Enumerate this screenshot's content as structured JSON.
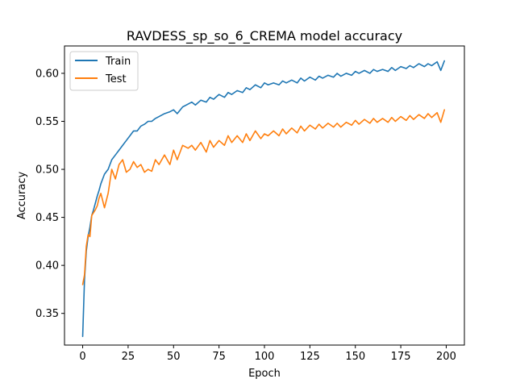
{
  "chart_data": {
    "type": "line",
    "title": "RAVDESS_sp_so_6_CREMA model accuracy",
    "xlabel": "Epoch",
    "ylabel": "Accuracy",
    "xlim": [
      -10,
      210
    ],
    "ylim": [
      0.317,
      0.6285
    ],
    "xticks": [
      0,
      25,
      50,
      75,
      100,
      125,
      150,
      175,
      200
    ],
    "yticks": [
      0.35,
      0.4,
      0.45,
      0.5,
      0.55,
      0.6
    ],
    "ytick_labels": [
      "0.35",
      "0.40",
      "0.45",
      "0.50",
      "0.55",
      "0.60"
    ],
    "grid": false,
    "legend": "top-left",
    "series": [
      {
        "name": "Train",
        "color": "#1f77b4",
        "x": [
          0,
          1,
          2,
          3,
          4,
          5,
          6,
          7,
          8,
          9,
          10,
          12,
          14,
          16,
          18,
          20,
          22,
          24,
          26,
          28,
          30,
          32,
          34,
          36,
          38,
          40,
          42,
          45,
          48,
          50,
          52,
          55,
          58,
          60,
          62,
          65,
          68,
          70,
          72,
          75,
          78,
          80,
          82,
          85,
          88,
          90,
          92,
          95,
          98,
          100,
          102,
          105,
          108,
          110,
          112,
          115,
          118,
          120,
          122,
          125,
          128,
          130,
          132,
          135,
          138,
          140,
          142,
          145,
          148,
          150,
          152,
          155,
          158,
          160,
          162,
          165,
          168,
          170,
          172,
          175,
          178,
          180,
          182,
          185,
          188,
          190,
          192,
          195,
          197,
          199
        ],
        "values": [
          0.326,
          0.385,
          0.415,
          0.43,
          0.44,
          0.452,
          0.458,
          0.465,
          0.472,
          0.478,
          0.485,
          0.495,
          0.5,
          0.51,
          0.515,
          0.52,
          0.525,
          0.53,
          0.535,
          0.54,
          0.54,
          0.545,
          0.547,
          0.55,
          0.55,
          0.553,
          0.555,
          0.558,
          0.56,
          0.562,
          0.558,
          0.565,
          0.568,
          0.57,
          0.567,
          0.572,
          0.57,
          0.575,
          0.573,
          0.578,
          0.575,
          0.58,
          0.578,
          0.582,
          0.58,
          0.585,
          0.583,
          0.588,
          0.585,
          0.59,
          0.588,
          0.59,
          0.588,
          0.592,
          0.59,
          0.593,
          0.59,
          0.595,
          0.592,
          0.596,
          0.593,
          0.597,
          0.595,
          0.598,
          0.596,
          0.6,
          0.597,
          0.6,
          0.598,
          0.602,
          0.6,
          0.603,
          0.6,
          0.604,
          0.602,
          0.604,
          0.602,
          0.606,
          0.603,
          0.607,
          0.605,
          0.608,
          0.606,
          0.61,
          0.607,
          0.61,
          0.608,
          0.612,
          0.603,
          0.613
        ]
      },
      {
        "name": "Test",
        "color": "#ff7f0e",
        "x": [
          0,
          1,
          2,
          3,
          4,
          5,
          6,
          7,
          8,
          9,
          10,
          12,
          14,
          16,
          18,
          20,
          22,
          24,
          26,
          28,
          30,
          32,
          34,
          36,
          38,
          40,
          42,
          45,
          48,
          50,
          52,
          55,
          58,
          60,
          62,
          65,
          68,
          70,
          72,
          75,
          78,
          80,
          82,
          85,
          88,
          90,
          92,
          95,
          98,
          100,
          102,
          105,
          108,
          110,
          112,
          115,
          118,
          120,
          122,
          125,
          128,
          130,
          132,
          135,
          138,
          140,
          142,
          145,
          148,
          150,
          152,
          155,
          158,
          160,
          162,
          165,
          168,
          170,
          172,
          175,
          178,
          180,
          182,
          185,
          188,
          190,
          192,
          195,
          197,
          199
        ],
        "values": [
          0.38,
          0.39,
          0.42,
          0.432,
          0.43,
          0.452,
          0.455,
          0.458,
          0.462,
          0.47,
          0.475,
          0.46,
          0.475,
          0.5,
          0.49,
          0.505,
          0.51,
          0.497,
          0.5,
          0.508,
          0.502,
          0.505,
          0.497,
          0.5,
          0.498,
          0.51,
          0.505,
          0.515,
          0.505,
          0.52,
          0.51,
          0.525,
          0.522,
          0.525,
          0.52,
          0.528,
          0.518,
          0.53,
          0.523,
          0.53,
          0.525,
          0.535,
          0.528,
          0.535,
          0.528,
          0.537,
          0.53,
          0.54,
          0.532,
          0.537,
          0.535,
          0.54,
          0.535,
          0.542,
          0.537,
          0.543,
          0.538,
          0.545,
          0.54,
          0.546,
          0.542,
          0.547,
          0.543,
          0.548,
          0.544,
          0.548,
          0.544,
          0.549,
          0.546,
          0.551,
          0.547,
          0.552,
          0.548,
          0.553,
          0.549,
          0.553,
          0.549,
          0.554,
          0.55,
          0.555,
          0.551,
          0.556,
          0.552,
          0.557,
          0.553,
          0.558,
          0.554,
          0.559,
          0.549,
          0.562
        ]
      }
    ]
  }
}
